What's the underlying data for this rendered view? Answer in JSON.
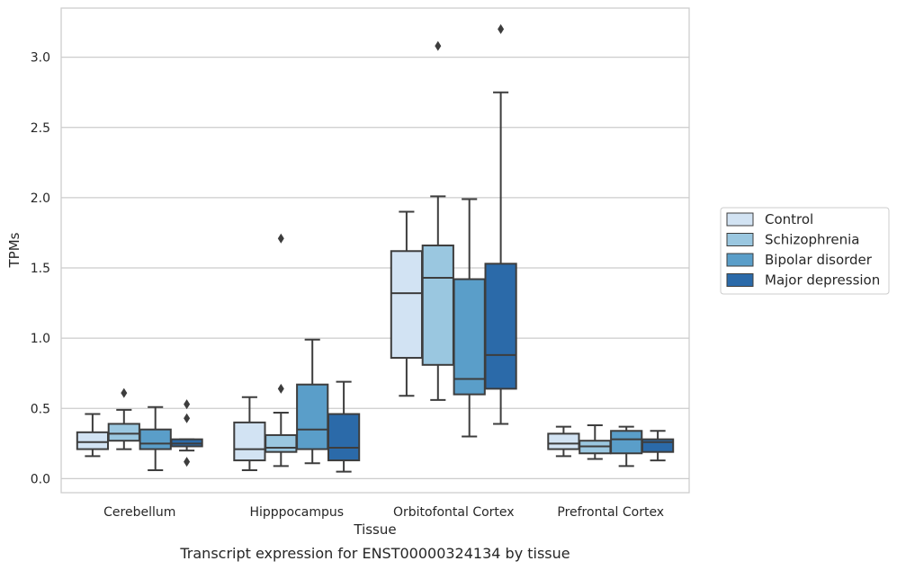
{
  "chart_data": {
    "type": "box",
    "xlabel": "Tissue",
    "ylabel": "TPMs",
    "caption": "Transcript expression for ENST00000324134 by tissue",
    "ylim": [
      -0.1,
      3.35
    ],
    "yticks": [
      0.0,
      0.5,
      1.0,
      1.5,
      2.0,
      2.5,
      3.0
    ],
    "ytick_labels": [
      "0.0",
      "0.5",
      "1.0",
      "1.5",
      "2.0",
      "2.5",
      "3.0"
    ],
    "grid": "horizontal",
    "legend_position": "right",
    "categories": [
      "Cerebellum",
      "Hipppocampus",
      "Orbitofontal Cortex",
      "Prefrontal Cortex"
    ],
    "series": [
      {
        "name": "Control",
        "color": "#d2e3f3",
        "boxes": [
          {
            "whislo": 0.16,
            "q1": 0.21,
            "med": 0.26,
            "q3": 0.33,
            "whishi": 0.46,
            "fliers": []
          },
          {
            "whislo": 0.06,
            "q1": 0.13,
            "med": 0.21,
            "q3": 0.4,
            "whishi": 0.58,
            "fliers": []
          },
          {
            "whislo": 0.59,
            "q1": 0.86,
            "med": 1.32,
            "q3": 1.62,
            "whishi": 1.9,
            "fliers": []
          },
          {
            "whislo": 0.16,
            "q1": 0.21,
            "med": 0.25,
            "q3": 0.32,
            "whishi": 0.37,
            "fliers": []
          }
        ]
      },
      {
        "name": "Schizophrenia",
        "color": "#9ac7e0",
        "boxes": [
          {
            "whislo": 0.21,
            "q1": 0.27,
            "med": 0.32,
            "q3": 0.39,
            "whishi": 0.49,
            "fliers": [
              0.61
            ]
          },
          {
            "whislo": 0.09,
            "q1": 0.19,
            "med": 0.22,
            "q3": 0.31,
            "whishi": 0.47,
            "fliers": [
              0.64,
              1.71
            ]
          },
          {
            "whislo": 0.56,
            "q1": 0.81,
            "med": 1.43,
            "q3": 1.66,
            "whishi": 2.01,
            "fliers": [
              3.08
            ]
          },
          {
            "whislo": 0.14,
            "q1": 0.18,
            "med": 0.23,
            "q3": 0.27,
            "whishi": 0.38,
            "fliers": []
          }
        ]
      },
      {
        "name": "Bipolar disorder",
        "color": "#5a9ec9",
        "boxes": [
          {
            "whislo": 0.06,
            "q1": 0.21,
            "med": 0.25,
            "q3": 0.35,
            "whishi": 0.51,
            "fliers": []
          },
          {
            "whislo": 0.11,
            "q1": 0.21,
            "med": 0.35,
            "q3": 0.67,
            "whishi": 0.99,
            "fliers": []
          },
          {
            "whislo": 0.3,
            "q1": 0.6,
            "med": 0.71,
            "q3": 1.42,
            "whishi": 1.99,
            "fliers": []
          },
          {
            "whislo": 0.09,
            "q1": 0.18,
            "med": 0.28,
            "q3": 0.34,
            "whishi": 0.37,
            "fliers": []
          }
        ]
      },
      {
        "name": "Major depression",
        "color": "#2b6aa9",
        "boxes": [
          {
            "whislo": 0.2,
            "q1": 0.23,
            "med": 0.25,
            "q3": 0.28,
            "whishi": 0.28,
            "fliers": [
              0.12,
              0.43,
              0.53
            ]
          },
          {
            "whislo": 0.05,
            "q1": 0.13,
            "med": 0.22,
            "q3": 0.46,
            "whishi": 0.69,
            "fliers": []
          },
          {
            "whislo": 0.39,
            "q1": 0.64,
            "med": 0.88,
            "q3": 1.53,
            "whishi": 2.75,
            "fliers": [
              3.2
            ]
          },
          {
            "whislo": 0.13,
            "q1": 0.19,
            "med": 0.26,
            "q3": 0.28,
            "whishi": 0.34,
            "fliers": []
          }
        ]
      }
    ]
  }
}
